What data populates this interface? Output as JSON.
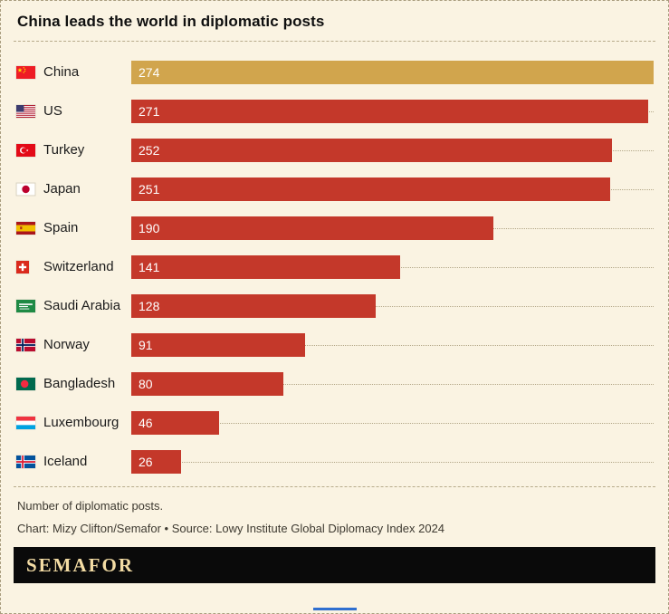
{
  "title": "China leads the world in diplomatic posts",
  "chart_data": {
    "type": "bar",
    "orientation": "horizontal",
    "title": "China leads the world in diplomatic posts",
    "xlabel": "Number of diplomatic posts",
    "xlim": [
      0,
      274
    ],
    "grid": "dotted row guides",
    "highlight_category": "China",
    "rows": [
      {
        "country": "China",
        "value": 274,
        "flag": "china",
        "highlight": true
      },
      {
        "country": "US",
        "value": 271,
        "flag": "us",
        "highlight": false
      },
      {
        "country": "Turkey",
        "value": 252,
        "flag": "turkey",
        "highlight": false
      },
      {
        "country": "Japan",
        "value": 251,
        "flag": "japan",
        "highlight": false
      },
      {
        "country": "Spain",
        "value": 190,
        "flag": "spain",
        "highlight": false
      },
      {
        "country": "Switzerland",
        "value": 141,
        "flag": "switzerland",
        "highlight": false
      },
      {
        "country": "Saudi Arabia",
        "value": 128,
        "flag": "saudi-arabia",
        "highlight": false
      },
      {
        "country": "Norway",
        "value": 91,
        "flag": "norway",
        "highlight": false
      },
      {
        "country": "Bangladesh",
        "value": 80,
        "flag": "bangladesh",
        "highlight": false
      },
      {
        "country": "Luxembourg",
        "value": 46,
        "flag": "luxembourg",
        "highlight": false
      },
      {
        "country": "Iceland",
        "value": 26,
        "flag": "iceland",
        "highlight": false
      }
    ]
  },
  "footer": {
    "note": "Number of diplomatic posts.",
    "credit": "Chart: Mizy Clifton/Semafor • Source: Lowy Institute Global Diplomacy Index 2024"
  },
  "brand": {
    "logo_text": "SEMAFOR"
  },
  "colors": {
    "background": "#FAF3E2",
    "bar_red": "#C4382A",
    "bar_gold": "#D1A54D",
    "logo_background": "#0A0A0A",
    "logo_text": "#F3DCA4",
    "bottom_line_blue": "#2F6FD0"
  }
}
